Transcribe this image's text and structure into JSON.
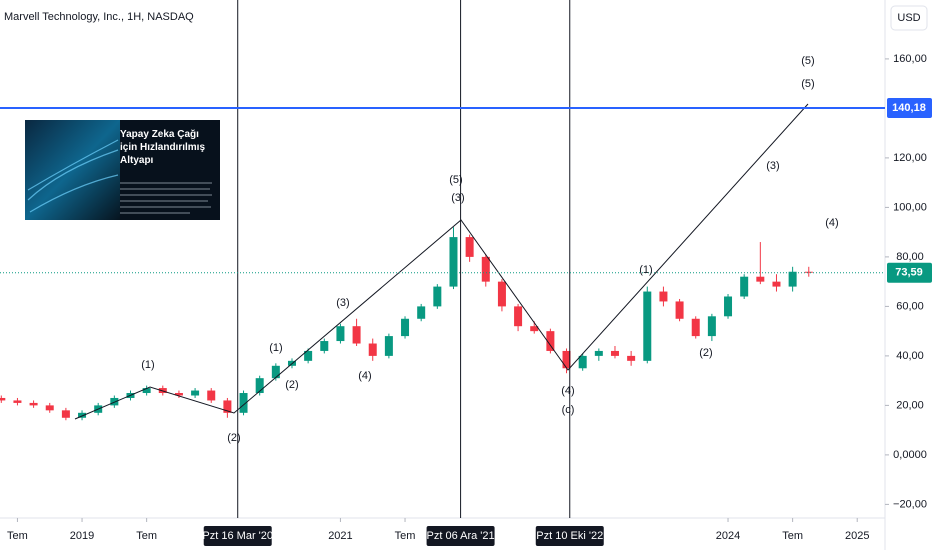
{
  "chart_data": {
    "type": "candlestick",
    "title": "Marvell Technology, Inc., 1H, NASDAQ",
    "currency": "USD",
    "up_color": "#089981",
    "down_color": "#f23645",
    "x": [
      2018.375,
      2018.5,
      2018.625,
      2018.75,
      2018.875,
      2019.0,
      2019.125,
      2019.25,
      2019.375,
      2019.5,
      2019.625,
      2019.75,
      2019.875,
      2020.0,
      2020.125,
      2020.25,
      2020.375,
      2020.5,
      2020.625,
      2020.75,
      2020.875,
      2021.0,
      2021.125,
      2021.25,
      2021.375,
      2021.5,
      2021.625,
      2021.75,
      2021.875,
      2022.0,
      2022.125,
      2022.25,
      2022.375,
      2022.5,
      2022.625,
      2022.75,
      2022.875,
      2023.0,
      2023.125,
      2023.25,
      2023.375,
      2023.5,
      2023.625,
      2023.75,
      2023.875,
      2024.0,
      2024.125,
      2024.25,
      2024.375,
      2024.5,
      2024.625
    ],
    "open": [
      23,
      22,
      21,
      20,
      18,
      15,
      17,
      20,
      23,
      25,
      27,
      25,
      24,
      26,
      22,
      17,
      25,
      31,
      36,
      38,
      42,
      46,
      52,
      45,
      40,
      48,
      55,
      60,
      68,
      88,
      80,
      70,
      60,
      52,
      50,
      42,
      35,
      40,
      42,
      40,
      38,
      66,
      62,
      55,
      48,
      56,
      64,
      72,
      70,
      68,
      74
    ],
    "high": [
      24,
      23,
      22,
      21,
      19,
      18,
      21,
      24,
      26,
      28,
      28,
      26,
      27,
      27,
      23,
      26,
      32,
      37,
      39,
      43,
      47,
      53,
      55,
      47,
      49,
      56,
      61,
      69,
      92,
      89,
      81,
      71,
      61,
      54,
      51,
      43,
      41,
      43,
      44,
      42,
      68,
      68,
      63,
      56,
      57,
      65,
      73,
      86,
      73,
      76,
      76
    ],
    "low": [
      21,
      20,
      19,
      17,
      14,
      14,
      16,
      19,
      22,
      24,
      24,
      23,
      23,
      21,
      15,
      16,
      24,
      30,
      35,
      37,
      41,
      45,
      44,
      38,
      39,
      47,
      54,
      59,
      67,
      78,
      68,
      58,
      50,
      49,
      41,
      33,
      34,
      38,
      39,
      36,
      37,
      60,
      54,
      47,
      46,
      55,
      63,
      69,
      66,
      66,
      72
    ],
    "close": [
      22,
      21,
      20,
      18,
      15,
      17,
      20,
      23,
      25,
      27,
      25,
      24,
      26,
      22,
      17,
      25,
      31,
      36,
      38,
      42,
      46,
      52,
      45,
      40,
      48,
      55,
      60,
      68,
      88,
      80,
      70,
      60,
      52,
      50,
      42,
      35,
      40,
      42,
      40,
      38,
      66,
      62,
      55,
      48,
      56,
      64,
      72,
      70,
      68,
      74,
      73.59
    ],
    "xlim": [
      2018.365,
      2025.215
    ],
    "ylim": [
      -25.5,
      183.8
    ],
    "yticks": [
      {
        "value": 160,
        "label": "160,00"
      },
      {
        "value": 120,
        "label": "120,00"
      },
      {
        "value": 100,
        "label": "100,00"
      },
      {
        "value": 80,
        "label": "80,00"
      },
      {
        "value": 60,
        "label": "60,00"
      },
      {
        "value": 40,
        "label": "40,00"
      },
      {
        "value": 20,
        "label": "20,00"
      },
      {
        "value": 0,
        "label": "0,0000"
      },
      {
        "value": -20,
        "label": "−20,00"
      }
    ],
    "xticks": [
      {
        "value": 2018.5,
        "label": "Tem"
      },
      {
        "value": 2019.0,
        "label": "2019"
      },
      {
        "value": 2019.5,
        "label": "Tem"
      },
      {
        "value": 2021.0,
        "label": "2021"
      },
      {
        "value": 2021.5,
        "label": "Tem"
      },
      {
        "value": 2024.0,
        "label": "2024"
      },
      {
        "value": 2024.5,
        "label": "Tem"
      },
      {
        "value": 2025.0,
        "label": "2025"
      }
    ],
    "date_markers": [
      {
        "value": 2020.205,
        "label": "Pzt 16 Mar '20"
      },
      {
        "value": 2021.93,
        "label": "Pzt 06 Ara '21"
      },
      {
        "value": 2022.775,
        "label": "Pzt 10 Eki '22"
      }
    ],
    "hline": {
      "value": 140.18,
      "label": "140,18",
      "color": "#2962ff"
    },
    "last_price": {
      "value": 73.59,
      "label": "73,59",
      "color": "#089981"
    },
    "annotations": [
      "(1)",
      "(2)",
      "(1)",
      "(2)",
      "(3)",
      "(4)",
      "(5)",
      "(3)",
      "(4)",
      "(c)",
      "(1)",
      "(2)",
      "(3)",
      "(4)",
      "(5)",
      "(5)"
    ],
    "ad_title": "Yapay Zeka Çağı için Hızlandırılmış Altyapı"
  }
}
